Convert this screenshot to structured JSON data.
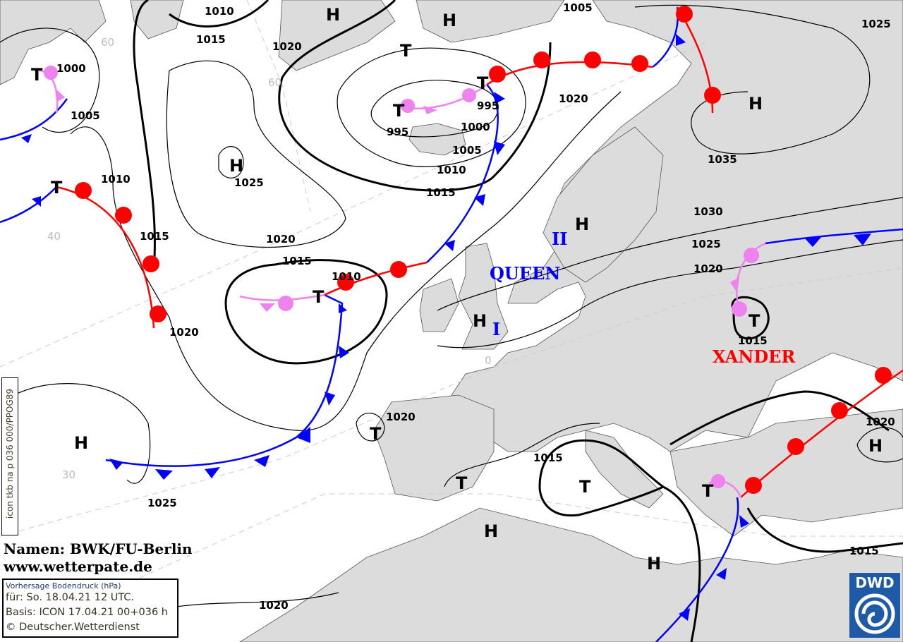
{
  "credits": {
    "names": "Namen: BWK/FU-Berlin",
    "url": "www.wetterpate.de"
  },
  "info": {
    "title": "Vorhersage Bodendruck (hPa)",
    "valid": "für:  So. 18.04.21  12 UTC.",
    "basis": "Basis: ICON  17.04.21 00+036 h",
    "copyright": "© Deutscher.Wetterdienst"
  },
  "side_label": "icon tkb na p 036 000/PPOG89",
  "logo": "DWD",
  "colors": {
    "land": "#dcdcdc",
    "sea": "#ffffff",
    "cold_front": "#0000ff",
    "warm_front": "#ff0000",
    "occlusion": "#ee82ee"
  },
  "pressure_systems": [
    "H",
    "H",
    "T",
    "T",
    "T",
    "T",
    "H",
    "T",
    "H",
    "H",
    "T",
    "H",
    "T",
    "T",
    "H",
    "H",
    "T",
    "T",
    "T",
    "H",
    "H"
  ],
  "isobar_labels": [
    "1010",
    "1015",
    "1020",
    "1000",
    "1005",
    "1010",
    "1015",
    "1020",
    "1025",
    "1020",
    "1015",
    "1010",
    "995",
    "995",
    "1000",
    "1005",
    "1010",
    "1015",
    "1005",
    "1020",
    "1025",
    "1035",
    "1030",
    "1025",
    "1020",
    "1015",
    "1020",
    "1015",
    "1025",
    "1020",
    "1020",
    "1015"
  ],
  "system_names": [
    {
      "name": "QUEEN",
      "color": "#0000ff"
    },
    {
      "name": "II",
      "color": "#0000ff"
    },
    {
      "name": "I",
      "color": "#0000ff"
    },
    {
      "name": "XANDER",
      "color": "#ff0000"
    }
  ],
  "latitude_labels": [
    "60",
    "60",
    "40",
    "30",
    "0"
  ]
}
